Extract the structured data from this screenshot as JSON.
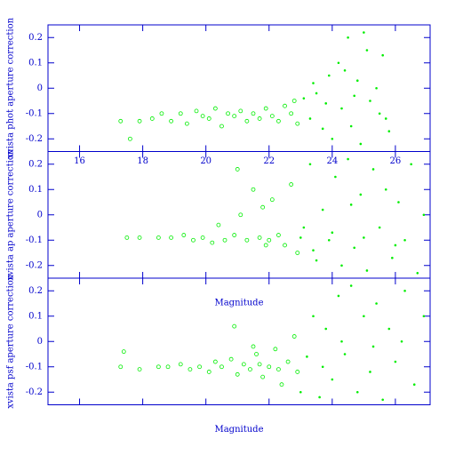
{
  "chart_data": [
    {
      "type": "scatter",
      "ylabel": "xvista phot aperture correction",
      "color": "#00ee00",
      "xlim": [
        15,
        27.1
      ],
      "ylim": [
        -0.25,
        0.25
      ],
      "xticks": [
        16,
        18,
        20,
        22,
        24,
        26
      ],
      "yticks": [
        -0.2,
        -0.1,
        0,
        0.1,
        0.2
      ],
      "show_xtick_labels": true,
      "x": [
        17.3,
        17.6,
        17.9,
        18.3,
        18.6,
        18.9,
        19.2,
        19.4,
        19.7,
        19.9,
        20.1,
        20.3,
        20.5,
        20.7,
        20.9,
        21.1,
        21.3,
        21.5,
        21.7,
        21.9,
        22.1,
        22.3,
        22.5,
        22.7,
        22.9,
        23.1,
        23.3,
        23.5,
        23.7,
        23.9,
        24.0,
        24.2,
        24.3,
        24.5,
        24.6,
        24.8,
        24.9,
        25.1,
        25.2,
        25.4,
        25.5,
        25.6,
        25.7,
        25.8,
        24.4,
        23.8,
        24.7,
        25.0,
        23.4,
        22.8
      ],
      "y": [
        -0.13,
        -0.2,
        -0.13,
        -0.12,
        -0.1,
        -0.13,
        -0.1,
        -0.14,
        -0.09,
        -0.11,
        -0.12,
        -0.08,
        -0.15,
        -0.1,
        -0.11,
        -0.09,
        -0.13,
        -0.1,
        -0.12,
        -0.08,
        -0.11,
        -0.13,
        -0.07,
        -0.1,
        -0.14,
        -0.04,
        -0.12,
        -0.02,
        -0.16,
        0.05,
        -0.2,
        0.1,
        -0.08,
        0.2,
        -0.15,
        0.03,
        -0.22,
        0.15,
        -0.05,
        0.0,
        -0.1,
        0.13,
        -0.12,
        -0.17,
        0.07,
        -0.06,
        -0.03,
        0.22,
        0.02,
        -0.05
      ]
    },
    {
      "type": "scatter",
      "ylabel": "xvista ap aperture correction",
      "xlabel": "Magnitude",
      "color": "#00ee00",
      "xlim": [
        15,
        27.1
      ],
      "ylim": [
        -0.25,
        0.25
      ],
      "xticks": [
        16,
        18,
        20,
        22,
        24,
        26
      ],
      "yticks": [
        -0.2,
        -0.1,
        0,
        0.1,
        0.2
      ],
      "show_xtick_labels": false,
      "x": [
        17.5,
        17.9,
        18.5,
        18.9,
        19.3,
        19.6,
        19.9,
        20.2,
        20.4,
        20.6,
        20.9,
        21.1,
        21.3,
        21.5,
        21.7,
        21.9,
        22.1,
        22.3,
        22.5,
        22.7,
        22.9,
        23.1,
        23.3,
        23.5,
        23.7,
        23.9,
        24.1,
        24.3,
        24.5,
        24.7,
        24.9,
        25.1,
        25.3,
        25.5,
        25.7,
        25.9,
        26.1,
        26.3,
        26.5,
        26.7,
        26.9,
        21.0,
        21.8,
        23.4,
        24.0,
        25.0,
        26.0,
        22.0,
        23.0,
        24.6
      ],
      "y": [
        -0.09,
        -0.09,
        -0.09,
        -0.09,
        -0.08,
        -0.1,
        -0.09,
        -0.11,
        -0.04,
        -0.1,
        -0.08,
        0.0,
        -0.1,
        0.1,
        -0.09,
        -0.12,
        0.06,
        -0.08,
        -0.12,
        0.12,
        -0.15,
        -0.05,
        0.2,
        -0.18,
        0.02,
        -0.1,
        0.15,
        -0.2,
        0.22,
        -0.13,
        0.08,
        -0.22,
        0.18,
        -0.05,
        0.1,
        -0.17,
        0.05,
        -0.1,
        0.2,
        -0.23,
        0.0,
        0.18,
        0.03,
        -0.14,
        -0.07,
        -0.09,
        -0.12,
        -0.1,
        -0.09,
        0.04
      ]
    },
    {
      "type": "scatter",
      "ylabel": "xvista psf aperture correction",
      "xlabel": "Magnitude",
      "color": "#00ee00",
      "xlim": [
        15,
        27.1
      ],
      "ylim": [
        -0.25,
        0.25
      ],
      "xticks": [
        16,
        18,
        20,
        22,
        24,
        26
      ],
      "yticks": [
        -0.2,
        -0.1,
        0,
        0.1,
        0.2
      ],
      "show_xtick_labels": false,
      "x": [
        17.3,
        17.4,
        17.9,
        18.5,
        18.8,
        19.2,
        19.5,
        19.8,
        20.1,
        20.3,
        20.5,
        20.8,
        21.0,
        21.2,
        21.4,
        21.6,
        21.8,
        22.0,
        22.2,
        22.4,
        22.6,
        22.8,
        23.0,
        23.2,
        23.4,
        23.6,
        23.8,
        24.0,
        24.2,
        24.4,
        24.6,
        24.8,
        25.0,
        25.2,
        25.4,
        25.6,
        25.8,
        26.0,
        26.3,
        26.6,
        26.9,
        20.9,
        21.5,
        22.9,
        23.7,
        24.3,
        25.3,
        26.2,
        22.3,
        21.7
      ],
      "y": [
        -0.1,
        -0.04,
        -0.11,
        -0.1,
        -0.1,
        -0.09,
        -0.11,
        -0.1,
        -0.12,
        -0.08,
        -0.1,
        -0.07,
        -0.13,
        -0.09,
        -0.11,
        -0.05,
        -0.14,
        -0.1,
        -0.03,
        -0.17,
        -0.08,
        0.02,
        -0.2,
        -0.06,
        0.1,
        -0.22,
        0.05,
        -0.15,
        0.18,
        -0.05,
        0.22,
        -0.2,
        0.1,
        -0.12,
        0.15,
        -0.23,
        0.05,
        -0.08,
        0.2,
        -0.17,
        0.1,
        0.06,
        -0.02,
        -0.12,
        -0.1,
        0.0,
        -0.02,
        0.0,
        -0.11,
        -0.09
      ]
    }
  ]
}
